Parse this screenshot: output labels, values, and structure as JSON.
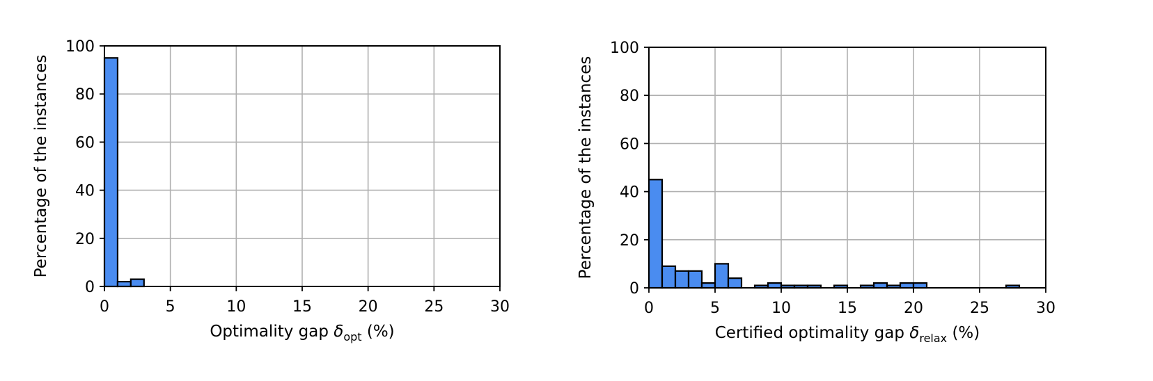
{
  "colors": {
    "bar_fill": "#4a8cf0",
    "bar_edge": "#000000",
    "grid": "#b0b0b0",
    "axes": "#000000"
  },
  "chart_data": [
    {
      "type": "bar",
      "subtype": "histogram",
      "xlabel": {
        "main": "Optimality gap ",
        "symbol": "δ",
        "subscript": "opt",
        "suffix": " (%)"
      },
      "ylabel": "Percentage of the instances",
      "xlim": [
        0,
        30
      ],
      "ylim": [
        0,
        100
      ],
      "xticks": [
        "0",
        "5",
        "10",
        "15",
        "20",
        "25",
        "30"
      ],
      "yticks": [
        "0",
        "20",
        "40",
        "60",
        "80",
        "100"
      ],
      "grid": true,
      "bin_width": 1,
      "bin_starts": [
        0,
        1,
        2
      ],
      "values": [
        95,
        2,
        3
      ]
    },
    {
      "type": "bar",
      "subtype": "histogram",
      "xlabel": {
        "main": "Certified optimality gap ",
        "symbol": "δ",
        "subscript": "relax",
        "suffix": " (%)"
      },
      "ylabel": "Percentage of the instances",
      "xlim": [
        0,
        30
      ],
      "ylim": [
        0,
        100
      ],
      "xticks": [
        "0",
        "5",
        "10",
        "15",
        "20",
        "25",
        "30"
      ],
      "yticks": [
        "0",
        "20",
        "40",
        "60",
        "80",
        "100"
      ],
      "grid": true,
      "bin_width": 1,
      "bin_starts": [
        0,
        1,
        2,
        3,
        4,
        5,
        6,
        7,
        8,
        9,
        10,
        11,
        12,
        13,
        14,
        15,
        16,
        17,
        18,
        19,
        20,
        21,
        22,
        23,
        24,
        25,
        26,
        27,
        28,
        29
      ],
      "values": [
        45,
        9,
        7,
        7,
        2,
        10,
        4,
        0,
        1,
        2,
        1,
        1,
        1,
        0,
        1,
        0,
        1,
        2,
        1,
        2,
        2,
        0,
        0,
        0,
        0,
        0,
        0,
        1,
        0,
        0
      ]
    }
  ]
}
